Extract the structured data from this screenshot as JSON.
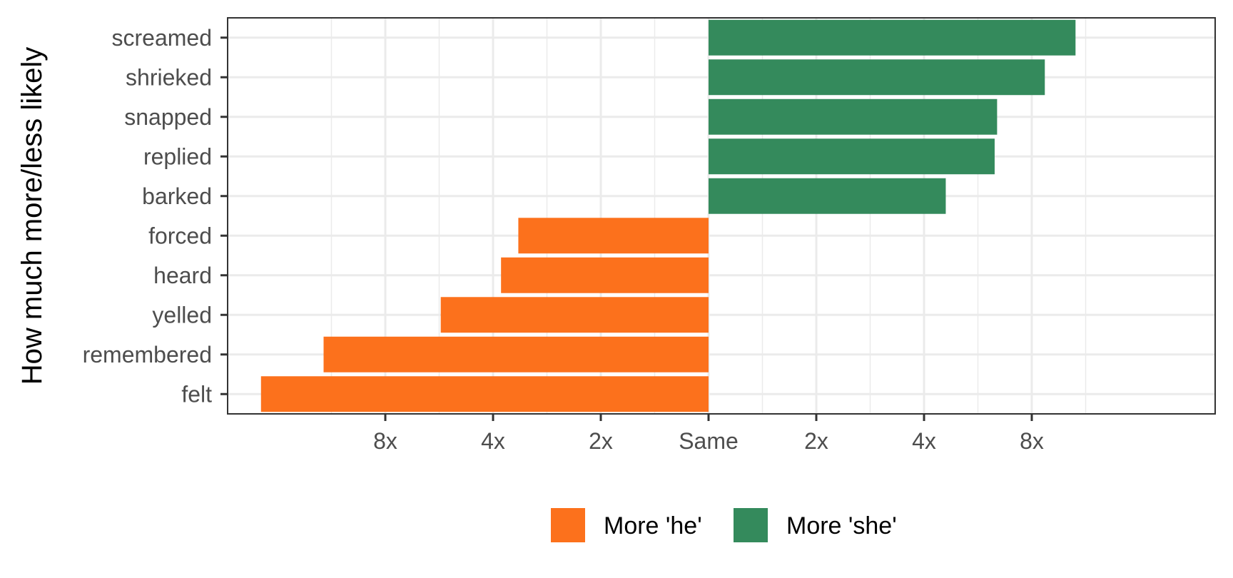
{
  "chart_data": {
    "type": "bar",
    "orientation": "horizontal",
    "ylabel": "How much more/less likely",
    "xlabel": "",
    "x_scale": "log2",
    "categories": [
      "screamed",
      "shrieked",
      "snapped",
      "replied",
      "barked",
      "forced",
      "heard",
      "yelled",
      "remembered",
      "felt"
    ],
    "values": [
      10.6,
      8.7,
      6.4,
      6.3,
      4.6,
      -3.4,
      -3.8,
      -5.6,
      -11.9,
      -17.8
    ],
    "groups": [
      "More 'she'",
      "More 'she'",
      "More 'she'",
      "More 'she'",
      "More 'she'",
      "More 'he'",
      "More 'he'",
      "More 'he'",
      "More 'he'",
      "More 'he'"
    ],
    "x_ticks": [
      {
        "value": -8,
        "label": "8x"
      },
      {
        "value": -4,
        "label": "4x"
      },
      {
        "value": -2,
        "label": "2x"
      },
      {
        "value": 1,
        "label": "Same"
      },
      {
        "value": 2,
        "label": "2x"
      },
      {
        "value": 4,
        "label": "4x"
      },
      {
        "value": 8,
        "label": "8x"
      }
    ],
    "xlim": [
      -24,
      14
    ],
    "grid": true,
    "legend": {
      "position": "bottom",
      "entries": [
        {
          "name": "More 'he'",
          "color": "#fc711c"
        },
        {
          "name": "More 'she'",
          "color": "#348a5c"
        }
      ]
    }
  }
}
